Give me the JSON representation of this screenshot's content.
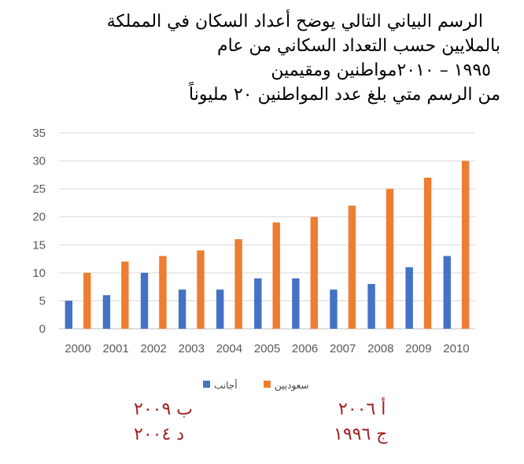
{
  "question": {
    "lines": [
      "الرسم البياني التالي يوضح أعداد السكان في المملكة",
      "بالملايين حسب التعداد السكاني من عام",
      "١٩٩٥ – ٢٠١٠مواطنين ومقيمين",
      "من الرسم متي بلغ عدد المواطنين ٢٠ مليوناً"
    ]
  },
  "chart_data": {
    "type": "bar",
    "categories": [
      "2000",
      "2001",
      "2002",
      "2003",
      "2004",
      "2005",
      "2006",
      "2007",
      "2008",
      "2009",
      "2010"
    ],
    "series": [
      {
        "name": "أجانب",
        "color": "#4472c4",
        "values": [
          5,
          6,
          10,
          7,
          7,
          9,
          9,
          7,
          8,
          11,
          13
        ]
      },
      {
        "name": "سعوديين",
        "color": "#ed7d31",
        "values": [
          10,
          12,
          13,
          14,
          16,
          19,
          20,
          22,
          25,
          27,
          30
        ]
      }
    ],
    "y_ticks": [
      "0",
      "5",
      "10",
      "15",
      "20",
      "25",
      "30",
      "35"
    ],
    "ylim": [
      0,
      35
    ],
    "grid": true,
    "legend_position": "bottom"
  },
  "answers": {
    "a": "أ ٢٠٠٦",
    "b": "ب ٢٠٠٩",
    "c": "ج ١٩٩٦",
    "d": "د ٢٠٠٤"
  }
}
